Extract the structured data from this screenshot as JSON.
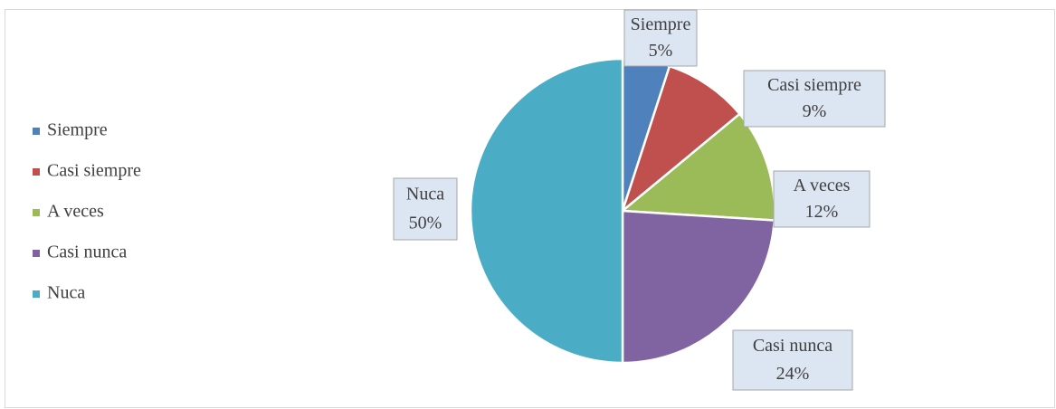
{
  "chart_data": {
    "type": "pie",
    "categories": [
      "Siempre",
      "Casi siempre",
      "A veces",
      "Casi nunca",
      "Nuca"
    ],
    "values": [
      5,
      9,
      12,
      24,
      50
    ],
    "value_labels": [
      "5%",
      "9%",
      "12%",
      "24%",
      "50%"
    ],
    "colors": [
      "#4f81bd",
      "#c0504d",
      "#9bbb59",
      "#8064a2",
      "#4bacc6"
    ],
    "legend": "left"
  }
}
